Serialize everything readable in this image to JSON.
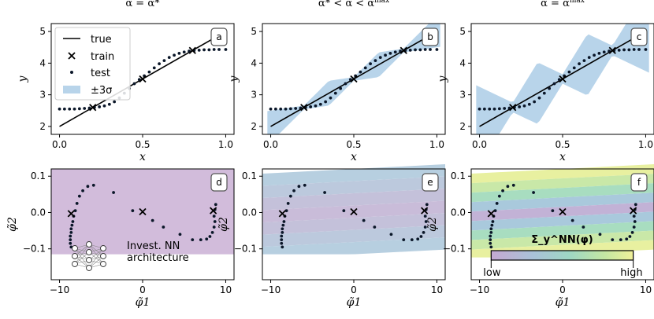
{
  "chart_data": [
    {
      "id": "a",
      "type": "line",
      "title": "α = α*",
      "badge": "a",
      "xlabel": "x",
      "ylabel": "y",
      "xlim": [
        -0.05,
        1.05
      ],
      "ylim": [
        1.75,
        5.25
      ],
      "xticks": [
        "0.0",
        "0.5",
        "1.0"
      ],
      "xtick_values": [
        0,
        0.5,
        1
      ],
      "yticks": [
        "2",
        "3",
        "4",
        "5"
      ],
      "ytick_values": [
        2,
        3,
        4,
        5
      ],
      "uncertainty": 0.0,
      "legend": {
        "items": [
          "true",
          "train",
          "test",
          "±3σ"
        ],
        "placement": "top-left"
      }
    },
    {
      "id": "b",
      "type": "line",
      "title": "α* < α < α^max",
      "badge": "b",
      "xlabel": "x",
      "ylabel": "y",
      "xlim": [
        -0.05,
        1.05
      ],
      "ylim": [
        1.75,
        5.25
      ],
      "xticks": [
        "0.0",
        "0.5",
        "1.0"
      ],
      "xtick_values": [
        0,
        0.5,
        1
      ],
      "yticks": [
        "2",
        "3",
        "4",
        "5"
      ],
      "ytick_values": [
        2,
        3,
        4,
        5
      ],
      "uncertainty": 0.4
    },
    {
      "id": "c",
      "type": "line",
      "title": "α = α^max",
      "badge": "c",
      "xlabel": "x",
      "ylabel": "y",
      "xlim": [
        -0.05,
        1.05
      ],
      "ylim": [
        1.75,
        5.25
      ],
      "xticks": [
        "0.0",
        "0.5",
        "1.0"
      ],
      "xtick_values": [
        0,
        0.5,
        1
      ],
      "yticks": [
        "2",
        "3",
        "4",
        "5"
      ],
      "ytick_values": [
        2,
        3,
        4,
        5
      ],
      "uncertainty": 1.0
    },
    {
      "id": "d",
      "type": "scatter",
      "badge": "d",
      "xlabel": "φ̃1",
      "ylabel": "φ̃2",
      "xlim": [
        -11,
        11
      ],
      "ylim": [
        -0.185,
        0.12
      ],
      "xticks": [
        "−10",
        "0",
        "10"
      ],
      "xtick_values": [
        -10,
        0,
        10
      ],
      "yticks": [
        "−0.1",
        "0.0",
        "0.1"
      ],
      "ytick_values": [
        -0.1,
        0,
        0.1
      ],
      "background": "uniform",
      "annotation": [
        "Invest. NN",
        "architecture"
      ]
    },
    {
      "id": "e",
      "type": "scatter",
      "badge": "e",
      "xlabel": "φ̃1",
      "ylabel": "φ̃2",
      "xlim": [
        -11,
        11
      ],
      "ylim": [
        -0.185,
        0.12
      ],
      "xticks": [
        "−10",
        "0",
        "10"
      ],
      "xtick_values": [
        -10,
        0,
        10
      ],
      "yticks": [
        "−0.1",
        "0.0",
        "0.1"
      ],
      "ytick_values": [
        -0.1,
        0,
        0.1
      ],
      "background": "bands-weak"
    },
    {
      "id": "f",
      "type": "scatter",
      "badge": "f",
      "xlabel": "φ̃1",
      "ylabel": "φ̃2",
      "xlim": [
        -11,
        11
      ],
      "ylim": [
        -0.185,
        0.12
      ],
      "xticks": [
        "−10",
        "0",
        "10"
      ],
      "xtick_values": [
        -10,
        0,
        10
      ],
      "yticks": [
        "−0.1",
        "0.0",
        "0.1"
      ],
      "ytick_values": [
        -0.1,
        0,
        0.1
      ],
      "background": "bands-strong",
      "colorbar": {
        "label": "Σ_y^NN(φ)",
        "low": "low",
        "high": "high"
      }
    }
  ],
  "curves": {
    "true_line": {
      "x": [
        0,
        1
      ],
      "y": [
        2.0,
        5.0
      ]
    },
    "train": {
      "x": [
        0.2,
        0.5,
        0.8
      ],
      "y": [
        2.6,
        3.5,
        4.4
      ]
    },
    "test_x": [
      0.0,
      0.03,
      0.06,
      0.09,
      0.12,
      0.15,
      0.18,
      0.21,
      0.24,
      0.27,
      0.3,
      0.33,
      0.36,
      0.39,
      0.42,
      0.45,
      0.48,
      0.51,
      0.54,
      0.57,
      0.6,
      0.63,
      0.66,
      0.69,
      0.72,
      0.75,
      0.78,
      0.81,
      0.84,
      0.87,
      0.9,
      0.93,
      0.96,
      1.0
    ],
    "test_y": [
      2.55,
      2.55,
      2.55,
      2.55,
      2.56,
      2.57,
      2.58,
      2.6,
      2.62,
      2.65,
      2.7,
      2.78,
      2.9,
      3.05,
      3.2,
      3.35,
      3.48,
      3.6,
      3.72,
      3.85,
      3.98,
      4.08,
      4.18,
      4.25,
      4.31,
      4.35,
      4.38,
      4.4,
      4.41,
      4.42,
      4.42,
      4.43,
      4.43,
      4.43
    ]
  },
  "latent": {
    "points_x": [
      -8.6,
      -8.7,
      -8.7,
      -8.7,
      -8.6,
      -8.6,
      -8.5,
      -8.4,
      -8.3,
      -8.1,
      -7.9,
      -7.6,
      -7.2,
      -6.6,
      -5.9,
      -3.5,
      -1.2,
      1.2,
      2.5,
      4.5,
      6.0,
      7.0,
      7.7,
      8.1,
      8.4,
      8.6,
      8.7,
      8.6,
      8.7,
      8.8
    ],
    "points_y": [
      -0.095,
      -0.085,
      -0.075,
      -0.065,
      -0.055,
      -0.045,
      -0.035,
      -0.025,
      -0.01,
      0.005,
      0.025,
      0.045,
      0.06,
      0.072,
      0.075,
      0.055,
      0.005,
      -0.022,
      -0.04,
      -0.06,
      -0.075,
      -0.075,
      -0.073,
      -0.066,
      -0.055,
      -0.04,
      -0.025,
      -0.01,
      0.008,
      0.022
    ],
    "train_x": [
      -8.6,
      0.0,
      8.5
    ],
    "train_y": [
      -0.003,
      0.002,
      0.005
    ]
  },
  "colors": {
    "band": "#b8d4ea",
    "purple": "#d2bcdb",
    "marker": "#0a1628"
  }
}
